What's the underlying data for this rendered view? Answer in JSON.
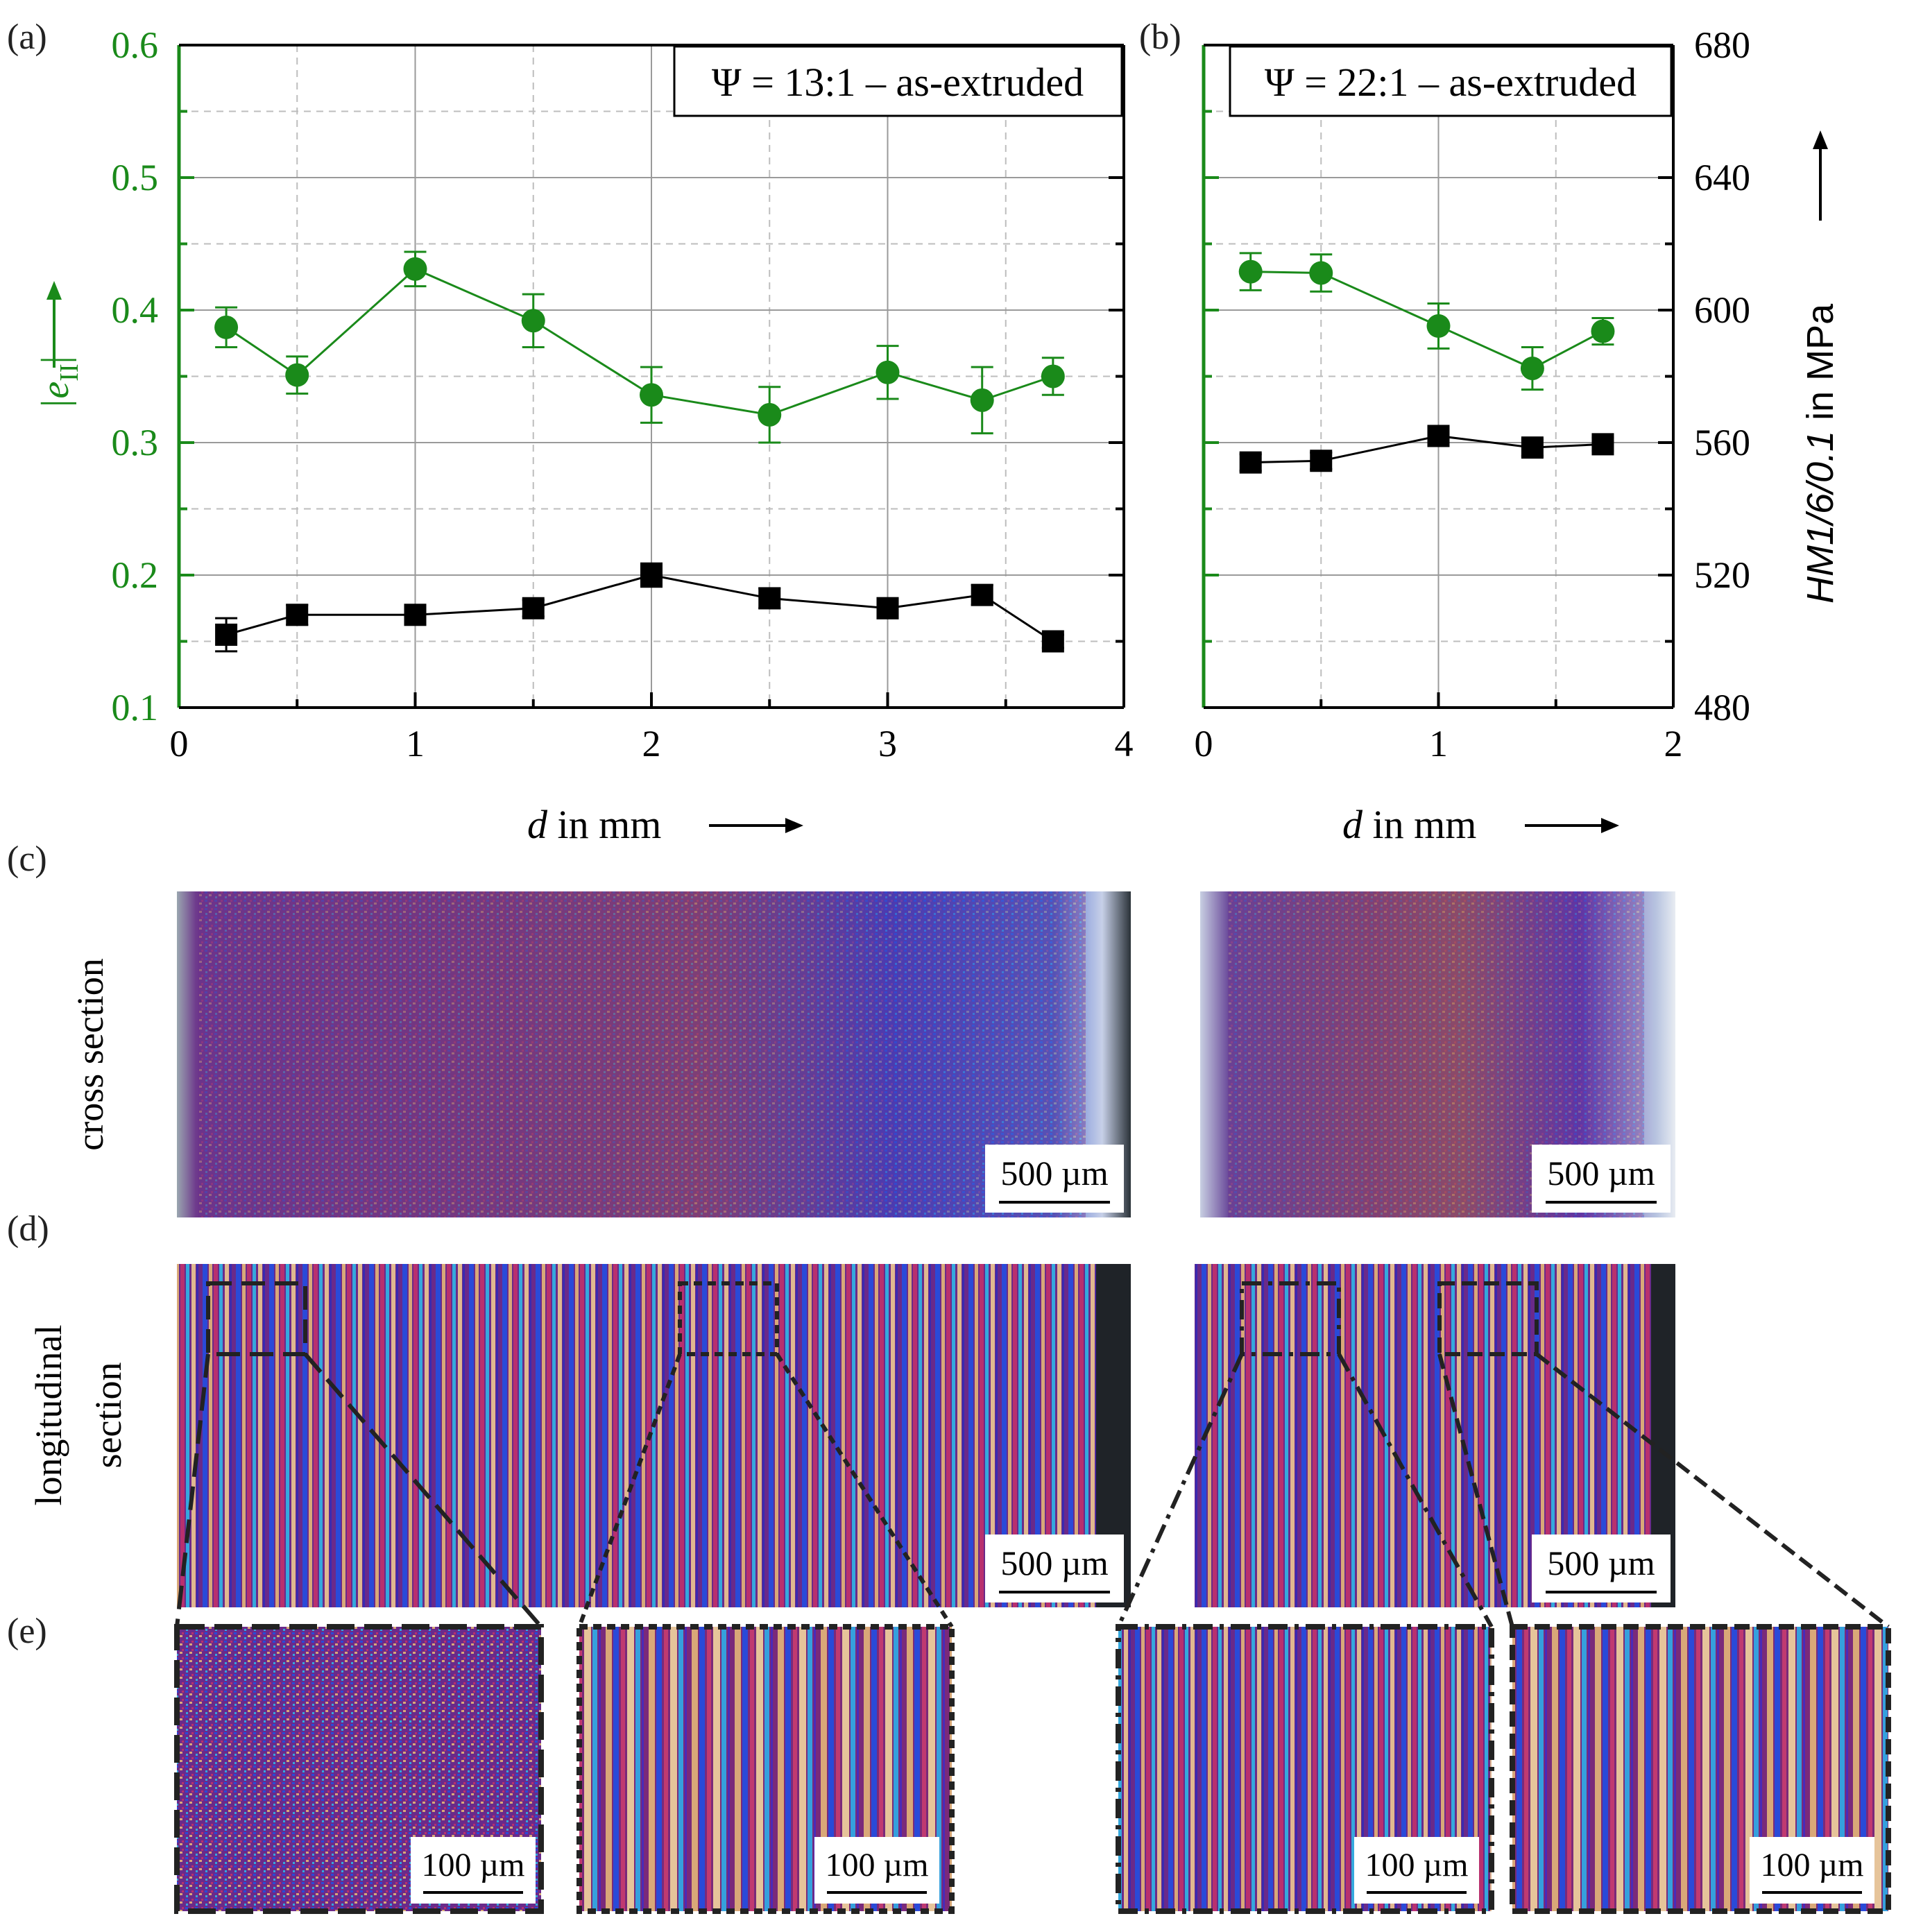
{
  "figure": {
    "panel_labels": {
      "a": "(a)",
      "b": "(b)",
      "c": "(c)",
      "d": "(d)",
      "e": "(e)"
    },
    "row_labels": {
      "cross_section": "cross section",
      "longitudinal_line1": "longitudinal",
      "longitudinal_line2": "section"
    },
    "scale_bars": {
      "large": "500 µm",
      "small": "100 µm"
    },
    "colors": {
      "green": "#1a8a1a",
      "black": "#000000",
      "grid": "#999999",
      "purple": "#6a2a8a",
      "blue": "#2a4ad8",
      "cyan": "#35a8dd",
      "tan": "#d9a878",
      "magenta": "#b8306e"
    }
  },
  "axes": {
    "left_label_prefix": "|e",
    "left_label_sub": "II",
    "left_label_suffix": "|",
    "left_ticks": [
      "0.1",
      "0.2",
      "0.3",
      "0.4",
      "0.5",
      "0.6"
    ],
    "right_label_main": "HM1/6/0.1",
    "right_label_unit": " in MPa",
    "right_ticks": [
      "480",
      "520",
      "560",
      "600",
      "640",
      "680"
    ],
    "x_label_var": "d",
    "x_label_unit": " in mm",
    "a_x_ticks": [
      "0",
      "1",
      "2",
      "3",
      "4"
    ],
    "b_x_ticks": [
      "0",
      "1",
      "2"
    ]
  },
  "chart_data": [
    {
      "type": "scatter",
      "panel": "(a)",
      "title": "Ψ = 13:1 – as-extruded",
      "xlabel": "d in mm",
      "ylabel_left": "|eII|",
      "ylabel_right": "HM1/6/0.1 in MPa",
      "xlim": [
        0,
        4
      ],
      "ylim_left": [
        0.1,
        0.6
      ],
      "ylim_right": [
        480,
        680
      ],
      "grid": true,
      "series": [
        {
          "name": "|eII|",
          "axis": "left",
          "color": "#1a8a1a",
          "marker": "circle",
          "x": [
            0.2,
            0.5,
            1.0,
            1.5,
            2.0,
            2.5,
            3.0,
            3.4,
            3.7
          ],
          "y": [
            0.387,
            0.351,
            0.431,
            0.392,
            0.336,
            0.321,
            0.353,
            0.332,
            0.35
          ],
          "err": [
            0.015,
            0.014,
            0.013,
            0.02,
            0.021,
            0.021,
            0.02,
            0.025,
            0.014
          ]
        },
        {
          "name": "HM1/6/0.1",
          "axis": "right",
          "color": "#000000",
          "marker": "square",
          "x": [
            0.2,
            0.5,
            1.0,
            1.5,
            2.0,
            2.5,
            3.0,
            3.4,
            3.7
          ],
          "y": [
            502,
            508,
            508,
            510,
            520,
            513,
            510,
            514,
            500
          ],
          "err": [
            5,
            3,
            2.5,
            2.5,
            3.5,
            3,
            3,
            3,
            2
          ]
        }
      ]
    },
    {
      "type": "scatter",
      "panel": "(b)",
      "title": "Ψ = 22:1 – as-extruded",
      "xlabel": "d in mm",
      "ylabel_left": "|eII|",
      "ylabel_right": "HM1/6/0.1 in MPa",
      "xlim": [
        0,
        2
      ],
      "ylim_left": [
        0.1,
        0.6
      ],
      "ylim_right": [
        480,
        680
      ],
      "grid": true,
      "series": [
        {
          "name": "|eII|",
          "axis": "left",
          "color": "#1a8a1a",
          "marker": "circle",
          "x": [
            0.2,
            0.5,
            1.0,
            1.4,
            1.7
          ],
          "y": [
            0.429,
            0.428,
            0.388,
            0.356,
            0.384
          ],
          "err": [
            0.014,
            0.014,
            0.017,
            0.016,
            0.01
          ]
        },
        {
          "name": "HM1/6/0.1",
          "axis": "right",
          "color": "#000000",
          "marker": "square",
          "x": [
            0.2,
            0.5,
            1.0,
            1.4,
            1.7
          ],
          "y": [
            554,
            554.5,
            562,
            558.5,
            559.5
          ],
          "err": [
            2.5,
            2.5,
            2.5,
            2.5,
            2
          ]
        }
      ]
    }
  ]
}
